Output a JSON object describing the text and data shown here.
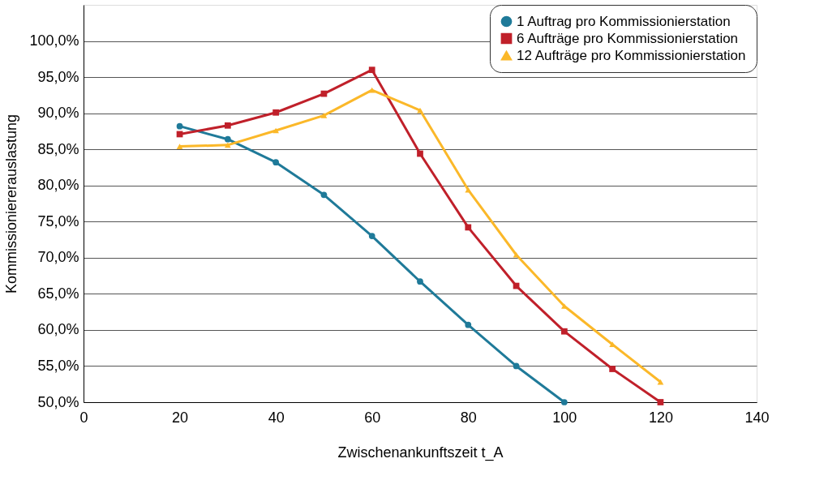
{
  "chart_data": {
    "type": "line",
    "xlabel": "Zwischenankunftszeit t_A",
    "ylabel": "Kommissioniererauslastung",
    "x": [
      20,
      30,
      40,
      50,
      60,
      70,
      80,
      90,
      100,
      110,
      120
    ],
    "xlim": [
      0,
      140
    ],
    "xticks": [
      0,
      20,
      40,
      60,
      80,
      100,
      120,
      140
    ],
    "ylim": [
      50,
      105
    ],
    "yticks": [
      {
        "value": 50,
        "label": "50,0%"
      },
      {
        "value": 55,
        "label": "55,0%"
      },
      {
        "value": 60,
        "label": "60,0%"
      },
      {
        "value": 65,
        "label": "65,0%"
      },
      {
        "value": 70,
        "label": "70,0%"
      },
      {
        "value": 75,
        "label": "75,0%"
      },
      {
        "value": 80,
        "label": "80,0%"
      },
      {
        "value": 85,
        "label": "85,0%"
      },
      {
        "value": 90,
        "label": "90,0%"
      },
      {
        "value": 95,
        "label": "95,0%"
      },
      {
        "value": 100,
        "label": "100,0%"
      }
    ],
    "grid": "y",
    "legend": "top right",
    "line_style": "solid",
    "series": [
      {
        "name": "1 Auftrag pro Kommissionierstation",
        "color": "#1f7a99",
        "marker": "circle",
        "values": [
          88.2,
          86.4,
          83.2,
          78.7,
          73.0,
          66.7,
          60.7,
          55.0,
          50.0,
          null,
          null
        ]
      },
      {
        "name": "6 Aufträge pro Kommissionierstation",
        "color": "#c0202a",
        "marker": "square",
        "values": [
          87.1,
          88.3,
          90.1,
          92.7,
          96.0,
          84.4,
          74.2,
          66.1,
          59.8,
          54.6,
          50.0
        ]
      },
      {
        "name": "12 Aufträge pro Kommissionierstation",
        "color": "#fbb829",
        "marker": "triangle",
        "values": [
          85.4,
          85.6,
          87.6,
          89.7,
          93.2,
          90.4,
          79.4,
          70.4,
          63.3,
          58.0,
          52.8
        ]
      }
    ]
  }
}
